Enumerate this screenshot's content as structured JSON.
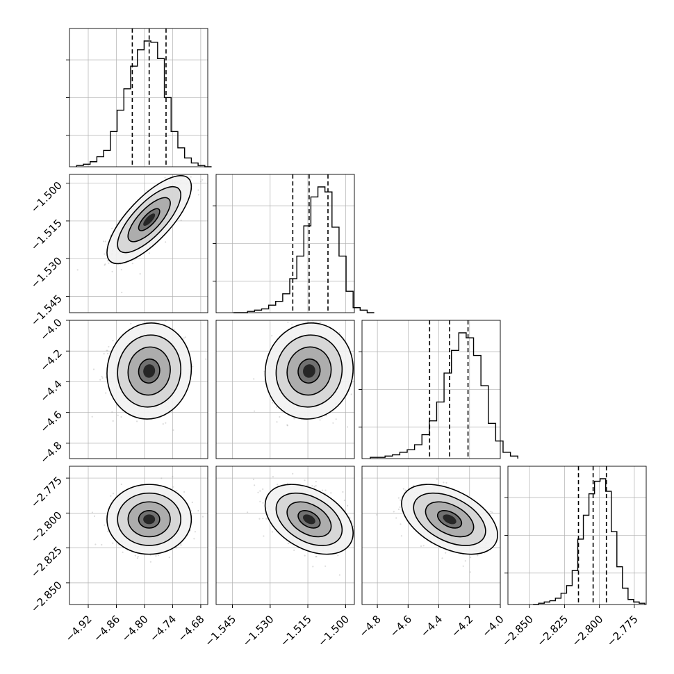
{
  "chart_data": {
    "type": "corner",
    "grid": true,
    "parameters": [
      {
        "index": 0,
        "median": -4.79,
        "q16": -4.826,
        "q84": -4.754,
        "sigma": 0.036,
        "range": [
          -4.96,
          -4.665
        ],
        "ticks": [
          -4.92,
          -4.86,
          -4.8,
          -4.74,
          -4.68
        ],
        "tick_labels": [
          "−4.92",
          "−4.86",
          "−4.80",
          "−4.74",
          "−4.68"
        ],
        "hist_counts": [
          0.01,
          0.02,
          0.04,
          0.08,
          0.13,
          0.28,
          0.45,
          0.62,
          0.8,
          0.93,
          1.0,
          0.99,
          0.86,
          0.55,
          0.28,
          0.15,
          0.07,
          0.03,
          0.01,
          0.0
        ]
      },
      {
        "index": 1,
        "median": -1.5145,
        "q16": -1.521,
        "q84": -1.507,
        "sigma": 0.007,
        "range": [
          -1.5515,
          -1.4965
        ],
        "ticks": [
          -1.545,
          -1.53,
          -1.515,
          -1.5
        ],
        "tick_labels": [
          "−1.545",
          "−1.530",
          "−1.515",
          "−1.500"
        ],
        "hist_counts": [
          0.0,
          0.0,
          0.01,
          0.02,
          0.03,
          0.06,
          0.09,
          0.15,
          0.27,
          0.45,
          0.69,
          0.92,
          1.0,
          0.96,
          0.68,
          0.45,
          0.17,
          0.04,
          0.02,
          0.0
        ]
      },
      {
        "index": 2,
        "median": -4.33,
        "q16": -4.46,
        "q84": -4.21,
        "sigma": 0.12,
        "range": [
          -4.9,
          -4.0
        ],
        "ticks": [
          -4.8,
          -4.6,
          -4.4,
          -4.2,
          -4.0
        ],
        "tick_labels": [
          "−4.8",
          "−4.6",
          "−4.4",
          "−4.2",
          "−4.0"
        ],
        "hist_counts": [
          0.01,
          0.01,
          0.02,
          0.03,
          0.05,
          0.07,
          0.11,
          0.19,
          0.3,
          0.45,
          0.68,
          0.86,
          1.0,
          0.96,
          0.82,
          0.58,
          0.28,
          0.14,
          0.05,
          0.02
        ]
      },
      {
        "index": 3,
        "median": -2.8045,
        "q16": -2.815,
        "q84": -2.795,
        "sigma": 0.01,
        "range": [
          -2.8655,
          -2.7665
        ],
        "ticks": [
          -2.85,
          -2.825,
          -2.8,
          -2.775
        ],
        "tick_labels": [
          "−2.850",
          "−2.825",
          "−2.800",
          "−2.775"
        ],
        "hist_counts": [
          0.0,
          0.01,
          0.02,
          0.03,
          0.05,
          0.09,
          0.15,
          0.27,
          0.52,
          0.71,
          0.88,
          0.98,
          1.0,
          0.9,
          0.58,
          0.3,
          0.13,
          0.04,
          0.02,
          0.01
        ]
      }
    ],
    "correlations": {
      "1_0": 0.75,
      "2_0": 0.05,
      "2_1": 0.05,
      "3_0": 0.0,
      "3_1": -0.4,
      "3_2": -0.45
    },
    "contour_levels_sigma": [
      0.5,
      1.0,
      1.5,
      2.0
    ]
  }
}
